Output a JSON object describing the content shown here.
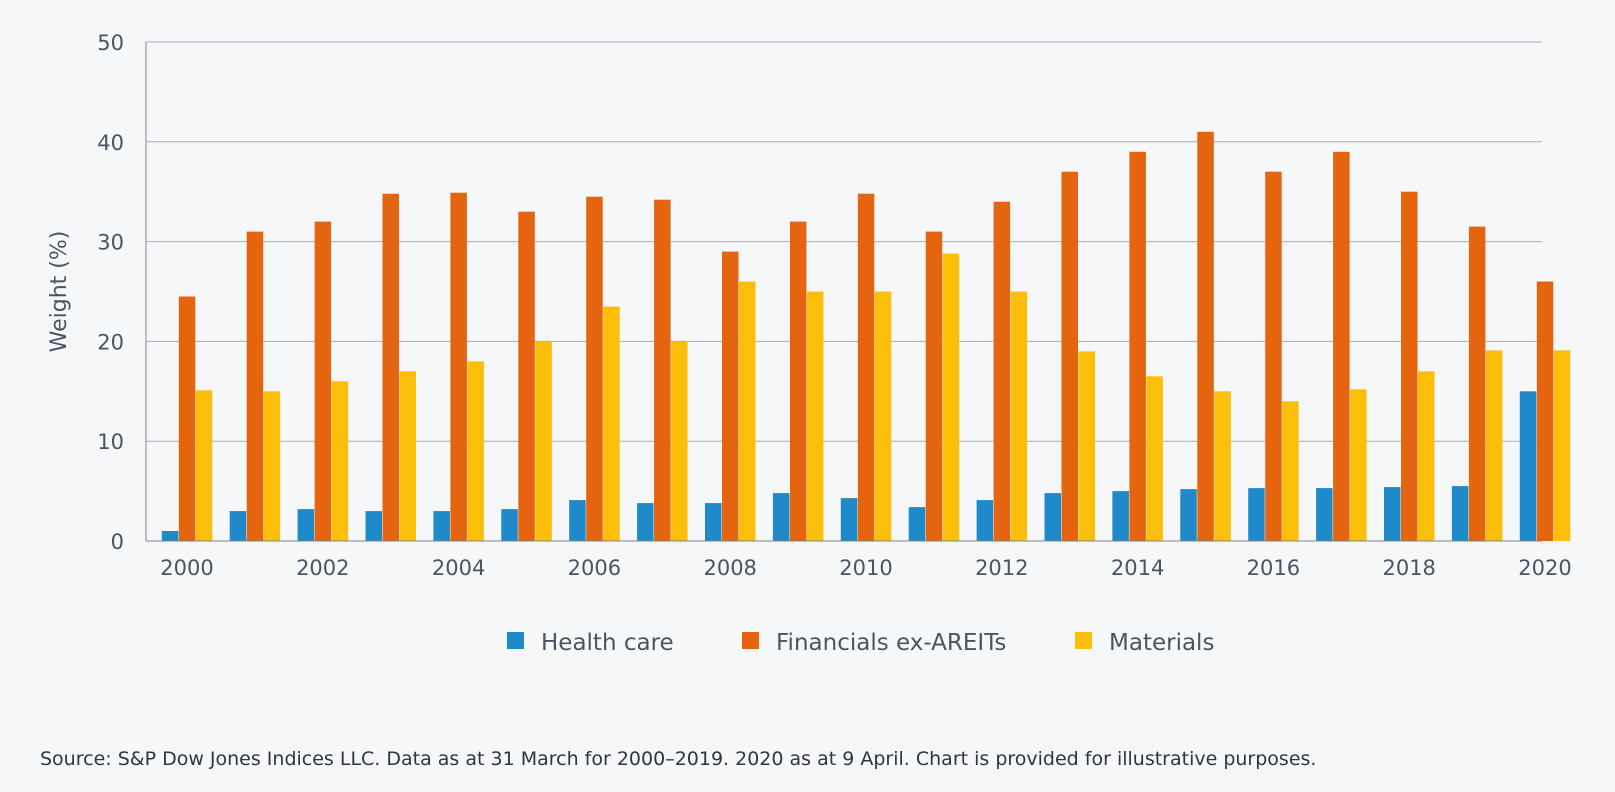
{
  "chart_data": {
    "type": "bar",
    "categories": [
      "2000",
      "2001",
      "2002",
      "2003",
      "2004",
      "2005",
      "2006",
      "2007",
      "2008",
      "2009",
      "2010",
      "2011",
      "2012",
      "2013",
      "2014",
      "2015",
      "2016",
      "2017",
      "2018",
      "2019",
      "2020"
    ],
    "x_tick_labels": [
      "2000",
      "2002",
      "2004",
      "2006",
      "2008",
      "2010",
      "2012",
      "2014",
      "2016",
      "2018",
      "2020"
    ],
    "y_ticks": [
      0,
      10,
      20,
      30,
      40,
      50
    ],
    "ylim": [
      0,
      50
    ],
    "ylabel": "Weight (%)",
    "xlabel": "",
    "grid": "horizontal",
    "legend_position": "bottom",
    "series": [
      {
        "name": "Health care",
        "color": "#1f8ac9",
        "values": [
          1,
          3,
          3.2,
          3,
          3,
          3.2,
          4.1,
          3.8,
          3.8,
          4.8,
          4.3,
          3.4,
          4.1,
          4.8,
          5,
          5.2,
          5.3,
          5.3,
          5.4,
          5.5,
          15
        ]
      },
      {
        "name": "Financials ex-AREITs",
        "color": "#e4640f",
        "values": [
          24.5,
          31,
          32,
          34.8,
          34.9,
          33,
          34.5,
          34.2,
          29,
          32,
          34.8,
          31,
          34,
          37,
          39,
          41,
          37,
          39,
          35,
          31.5,
          26
        ]
      },
      {
        "name": "Materials",
        "color": "#fbbf0a",
        "values": [
          15.1,
          15,
          16,
          17,
          18,
          20,
          23.5,
          20,
          26,
          25,
          25,
          28.8,
          25,
          19,
          16.5,
          15,
          14,
          15.2,
          17,
          19.1,
          19.1
        ]
      }
    ]
  },
  "source_note": "Source: S&P Dow Jones Indices LLC. Data as at 31 March for 2000–2019. 2020 as at 9 April. Chart is provided for illustrative purposes."
}
